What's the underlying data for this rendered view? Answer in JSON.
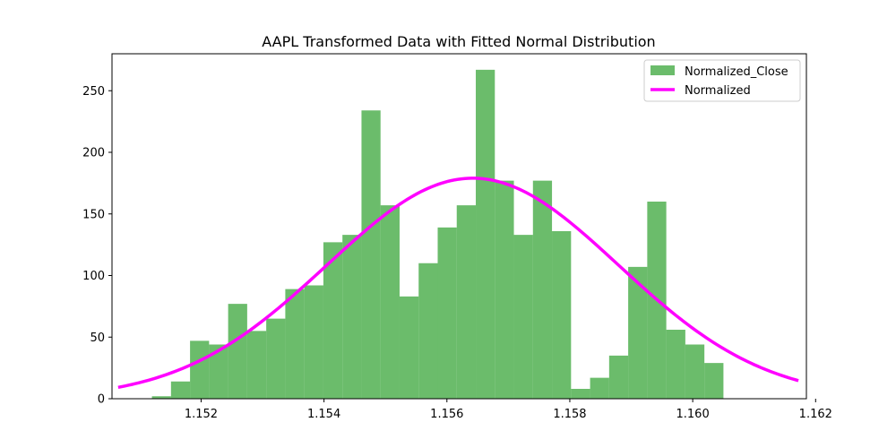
{
  "chart_data": {
    "type": "bar",
    "title": "AAPL Transformed Data with Fitted Normal Distribution",
    "xlabel": "",
    "ylabel": "",
    "xlim": [
      1.15055,
      1.16185
    ],
    "ylim": [
      0,
      280
    ],
    "xticks": [
      1.152,
      1.154,
      1.156,
      1.158,
      1.16,
      1.162
    ],
    "xtick_labels": [
      "1.152",
      "1.154",
      "1.156",
      "1.158",
      "1.160",
      "1.162"
    ],
    "yticks": [
      0,
      50,
      100,
      150,
      200,
      250
    ],
    "ytick_labels": [
      "0",
      "50",
      "100",
      "150",
      "200",
      "250"
    ],
    "grid": false,
    "legend_position": "top-right",
    "histogram": {
      "name": "Normalized_Close",
      "color": "#2ca02c",
      "alpha": 0.7,
      "bin_edges": [
        1.1512,
        1.15151,
        1.15182,
        1.15213,
        1.15244,
        1.15275,
        1.15306,
        1.15337,
        1.15368,
        1.15399,
        1.1543,
        1.15461,
        1.15492,
        1.15523,
        1.15554,
        1.15585,
        1.15616,
        1.15647,
        1.15678,
        1.15709,
        1.1574,
        1.15771,
        1.15802,
        1.15833,
        1.15864,
        1.15895,
        1.15926,
        1.15957,
        1.15988,
        1.16019,
        1.1605,
        1.16081,
        1.16112
      ],
      "counts": [
        2,
        14,
        47,
        44,
        77,
        55,
        65,
        89,
        92,
        127,
        133,
        234,
        157,
        83,
        110,
        139,
        157,
        267,
        177,
        133,
        177,
        136,
        8,
        17,
        35,
        107,
        160,
        56,
        44,
        29,
        0,
        0
      ]
    },
    "curve": {
      "name": "Normalized",
      "color": "#ff00ff",
      "mean": 1.15642,
      "std": 0.00237,
      "peak": 179,
      "x_range": [
        1.15065,
        1.16172
      ]
    }
  }
}
